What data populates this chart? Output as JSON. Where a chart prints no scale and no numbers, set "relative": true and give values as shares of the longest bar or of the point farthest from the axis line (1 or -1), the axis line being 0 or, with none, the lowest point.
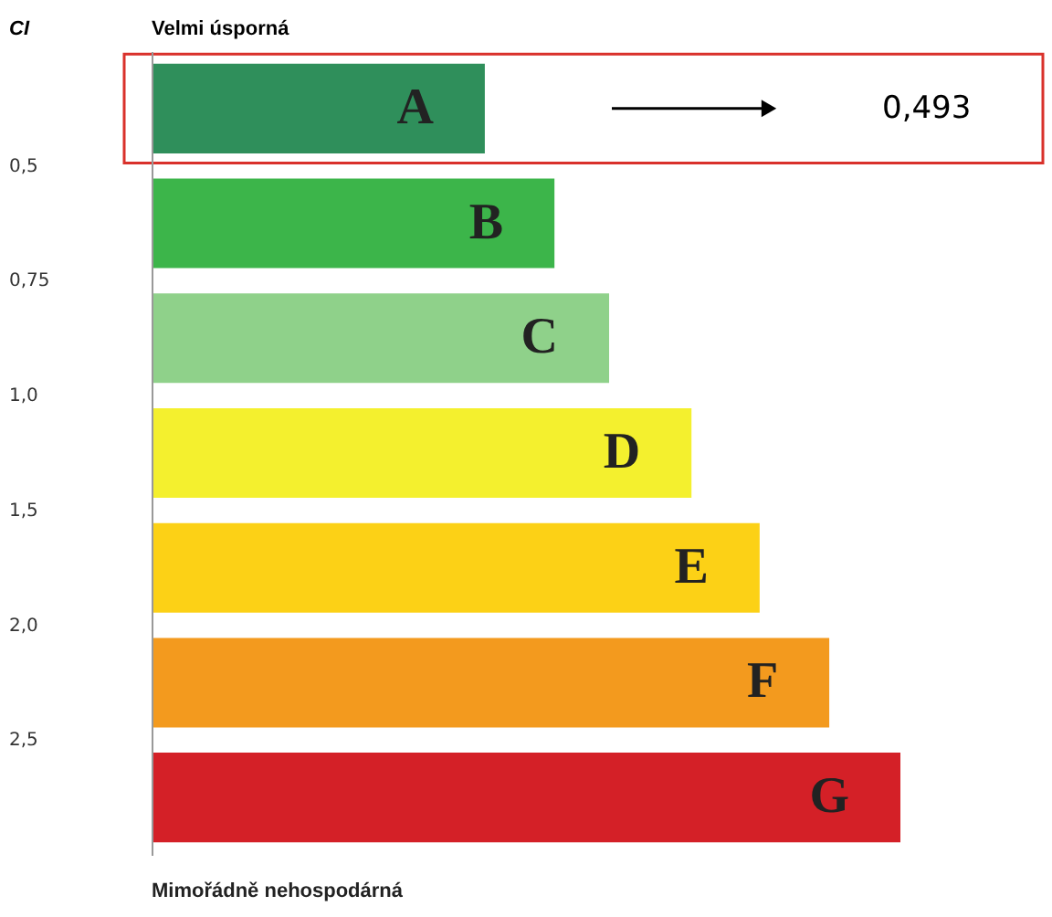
{
  "chart_data": {
    "type": "bar",
    "orientation": "horizontal",
    "relative": true,
    "title": "Velmi úsporná",
    "categories": [
      "A",
      "B",
      "C",
      "D",
      "E",
      "F",
      "G"
    ],
    "values": [
      0.445,
      0.538,
      0.611,
      0.721,
      0.812,
      0.905,
      1.0
    ],
    "colors": [
      "#2f8f5b",
      "#3cb54a",
      "#8fd18a",
      "#f4f02e",
      "#fcd116",
      "#f39a1e",
      "#d42027"
    ],
    "annotations": [
      "CI",
      "0,493",
      "0,5",
      "0,75",
      "1,0",
      "1,5",
      "2,0",
      "2,5",
      "Mimořádně nehospodárná"
    ]
  }
}
